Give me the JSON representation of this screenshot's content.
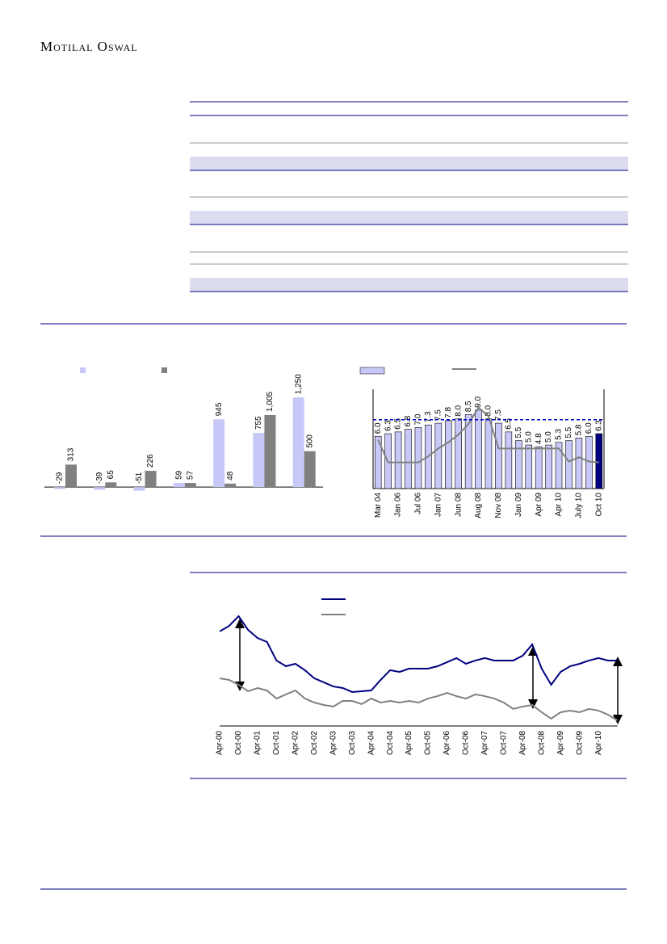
{
  "header": {
    "brand": "Motilal Oswal"
  },
  "chart_data": [
    {
      "type": "bar",
      "categories": [
        null,
        null,
        null,
        null,
        null,
        null,
        null
      ],
      "series": [
        {
          "color": "#c8c8f8",
          "values": [
            -29,
            -39,
            -51,
            59,
            945,
            755,
            1250
          ],
          "value_labels": [
            "-29",
            "-39",
            "-51",
            "59",
            "945",
            "755",
            "1,250"
          ]
        },
        {
          "color": "#808080",
          "values": [
            313,
            65,
            226,
            57,
            48,
            1005,
            500
          ],
          "value_labels": [
            "313",
            "65",
            "226",
            "57",
            "48",
            "1,005",
            "500"
          ]
        }
      ],
      "ylim": [
        -100,
        1500
      ]
    },
    {
      "type": "combo",
      "categories": [
        "Mar 04",
        null,
        "Jan 06",
        null,
        "Jul 06",
        null,
        "Jan 07",
        null,
        "Jun 08",
        null,
        "Aug 08",
        null,
        "Nov 08",
        null,
        "Jan 09",
        null,
        "Apr 09",
        null,
        "Apr 10",
        null,
        "July 10",
        null,
        "Oct 10"
      ],
      "series": [
        {
          "type": "bar",
          "color": "#c8c8f8",
          "colors": [
            "#c8c8f8",
            "#c8c8f8",
            "#c8c8f8",
            "#c8c8f8",
            "#c8c8f8",
            "#c8c8f8",
            "#c8c8f8",
            "#c8c8f8",
            "#c8c8f8",
            "#c8c8f8",
            "#c8c8f8",
            "#c8c8f8",
            "#c8c8f8",
            "#c8c8f8",
            "#c8c8f8",
            "#c8c8f8",
            "#c8c8f8",
            "#c8c8f8",
            "#c8c8f8",
            "#c8c8f8",
            "#c8c8f8",
            "#c8c8f8",
            "#000080"
          ],
          "values": [
            6,
            6.3,
            6.5,
            6.8,
            7,
            7.3,
            7.5,
            7.8,
            8,
            8.5,
            9,
            8,
            7.5,
            6.5,
            5.5,
            5,
            4.8,
            5,
            5.3,
            5.5,
            5.8,
            6,
            6.3
          ],
          "value_labels": [
            "6.0",
            "6.3",
            "6.5",
            "6.8",
            "7.0",
            "7.3",
            "7.5",
            "7.8",
            "8.0",
            "8.5",
            "9.0",
            "8.0",
            "7.5",
            "6.5",
            "5.5",
            "5.0",
            "4.8",
            "5.0",
            "5.3",
            "5.5",
            "5.8",
            "6.0",
            "6.3"
          ]
        },
        {
          "type": "line",
          "color": "#808080",
          "values": [
            5.6,
            3.0,
            3.0,
            3.0,
            3.0,
            3.7,
            4.6,
            5.3,
            6.2,
            7.4,
            9.3,
            8.3,
            4.6,
            4.6,
            4.6,
            4.6,
            4.6,
            4.6,
            4.6,
            3.1,
            3.6,
            3.1,
            3.0
          ]
        }
      ],
      "reference_line": {
        "value": 7.9,
        "color": "#0000cc"
      },
      "ylim": [
        0,
        11.4
      ]
    },
    {
      "type": "line",
      "categories": [
        "Apr-00",
        null,
        "Oct-00",
        null,
        "Apr-01",
        null,
        "Oct-01",
        null,
        "Apr-02",
        null,
        "Oct-02",
        null,
        "Apr-03",
        null,
        "Oct-03",
        null,
        "Apr-04",
        null,
        "Oct-04",
        null,
        "Apr-05",
        null,
        "Oct-05",
        null,
        "Apr-06",
        null,
        "Oct-06",
        null,
        "Apr-07",
        null,
        "Oct-07",
        null,
        "Apr-08",
        null,
        "Oct-08",
        null,
        "Apr-09",
        null,
        "Oct-09",
        null,
        "Apr-10",
        null,
        null
      ],
      "series": [
        {
          "color": "#000080",
          "values": [
            78.7,
            83.3,
            91.3,
            80,
            73.3,
            70,
            54.7,
            50,
            52,
            46.7,
            40,
            36.7,
            33.3,
            32,
            28.7,
            29.3,
            30,
            38.7,
            46.7,
            45.3,
            48,
            48,
            48,
            50,
            53.3,
            56.7,
            52,
            54.7,
            56.7,
            54.7,
            54.7,
            54.7,
            58.7,
            68,
            48,
            34.7,
            45.3,
            50,
            52,
            54.7,
            56.7,
            54.7,
            54.7
          ]
        },
        {
          "color": "#808080",
          "values": [
            40,
            38.7,
            34.7,
            29.3,
            32,
            30,
            23.3,
            26.7,
            30,
            23.3,
            20,
            18,
            16.7,
            21.3,
            21.3,
            18.7,
            23.3,
            20,
            21.3,
            20,
            21.3,
            20,
            23.3,
            25.3,
            28,
            25.3,
            23.3,
            26.7,
            25.3,
            23.3,
            20,
            14.7,
            16.7,
            18,
            12,
            6.7,
            12,
            13.3,
            12,
            14.7,
            13.3,
            10,
            5.3
          ]
        }
      ],
      "ylim": [
        0,
        100
      ]
    }
  ]
}
